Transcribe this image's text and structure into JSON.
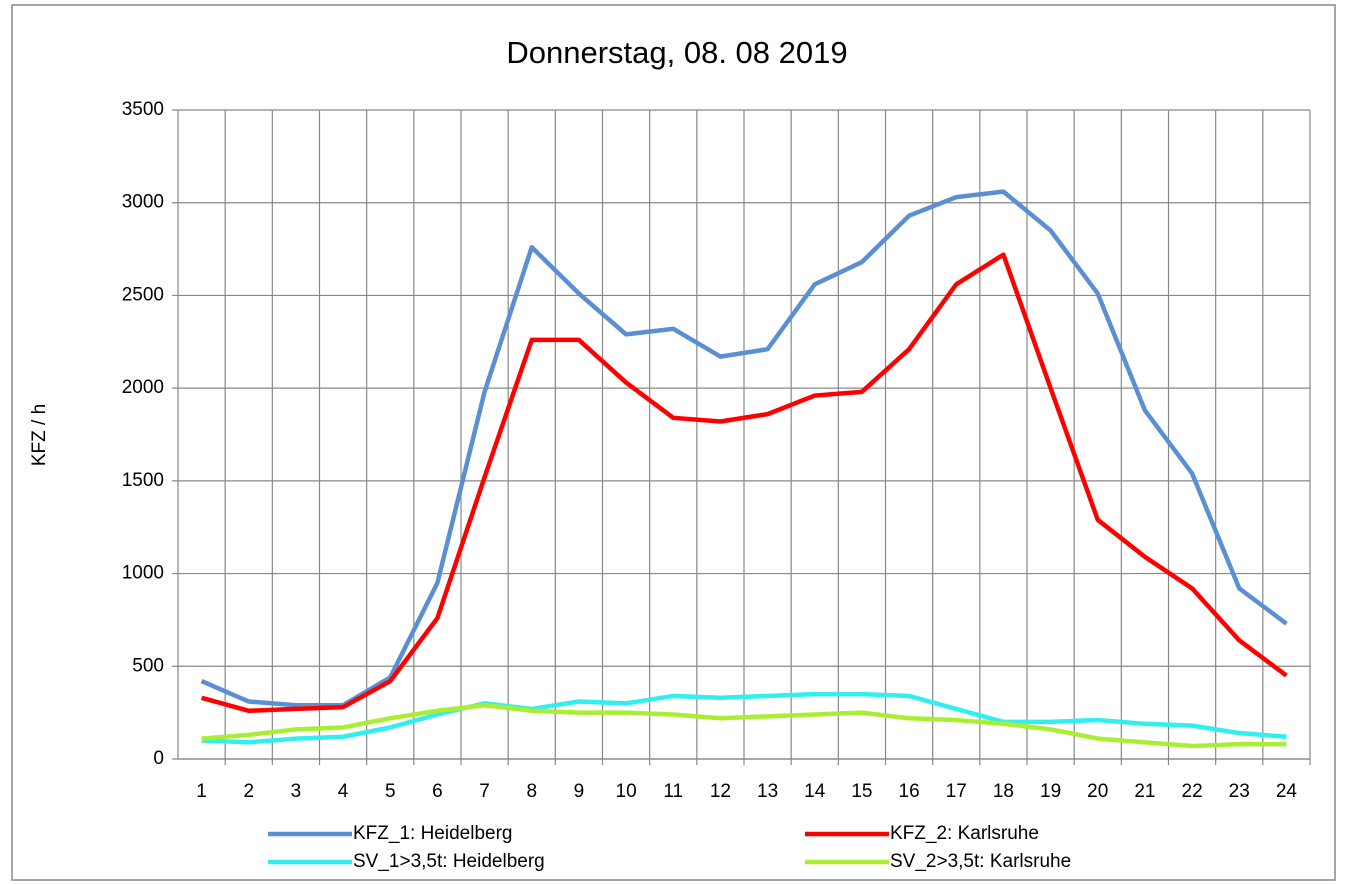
{
  "chart_data": {
    "type": "line",
    "title": "Donnerstag, 08. 08 2019",
    "y_label": "KFZ / h",
    "categories": [
      "1",
      "2",
      "3",
      "4",
      "5",
      "6",
      "7",
      "8",
      "9",
      "10",
      "11",
      "12",
      "13",
      "14",
      "15",
      "16",
      "17",
      "18",
      "19",
      "20",
      "21",
      "22",
      "23",
      "24"
    ],
    "series": [
      {
        "name": "KFZ_1: Heidelberg",
        "color": "#5b8fd4",
        "values": [
          420,
          310,
          290,
          290,
          440,
          950,
          1980,
          2760,
          2510,
          2290,
          2320,
          2170,
          2210,
          2560,
          2680,
          2930,
          3030,
          3060,
          2850,
          2510,
          1880,
          1540,
          920,
          730
        ]
      },
      {
        "name": "KFZ_2: Karlsruhe",
        "color": "#ff0000",
        "values": [
          330,
          260,
          270,
          280,
          420,
          760,
          1520,
          2260,
          2260,
          2030,
          1840,
          1820,
          1860,
          1960,
          1980,
          2210,
          2560,
          2720,
          2000,
          1290,
          1090,
          920,
          640,
          450
        ]
      },
      {
        "name": "SV_1>3,5t: Heidelberg",
        "color": "#33eeee",
        "values": [
          100,
          90,
          110,
          120,
          170,
          240,
          300,
          270,
          310,
          300,
          340,
          330,
          340,
          350,
          350,
          340,
          270,
          200,
          200,
          210,
          190,
          180,
          140,
          120
        ]
      },
      {
        "name": "SV_2>3,5t: Karlsruhe",
        "color": "#aaee33",
        "values": [
          110,
          130,
          160,
          170,
          220,
          260,
          290,
          260,
          250,
          250,
          240,
          220,
          230,
          240,
          250,
          220,
          210,
          190,
          160,
          110,
          90,
          70,
          80,
          80
        ]
      }
    ],
    "ylim": [
      0,
      3500
    ],
    "yticks": [
      0,
      500,
      1000,
      1500,
      2000,
      2500,
      3000,
      3500
    ],
    "grid": true,
    "legend": "bottom"
  }
}
